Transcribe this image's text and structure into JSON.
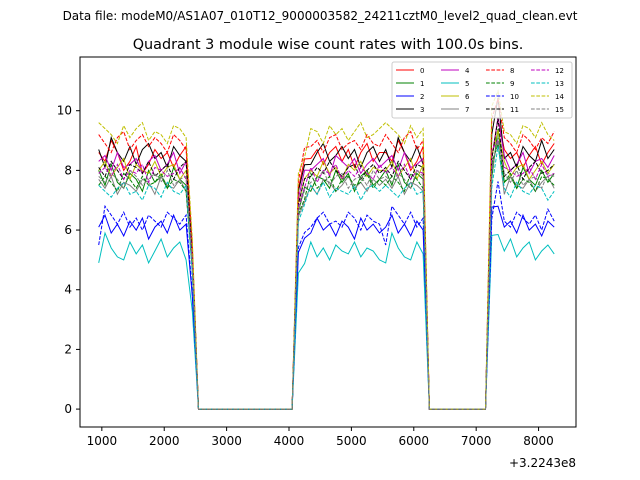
{
  "figure": {
    "suptitle": "Data file: modeM0/AS1A07_010T12_9000003582_24211cztM0_level2_quad_clean.evt",
    "title": "Quadrant 3 module wise count rates with 100.0s bins.",
    "x_offset_label": "+3.2243e8"
  },
  "chart_data": {
    "type": "line",
    "title": "Quadrant 3 module wise count rates with 100.0s bins.",
    "xlabel": "",
    "ylabel": "",
    "x_offset": "+3.2243e8",
    "xlim": [
      650,
      8600
    ],
    "ylim": [
      -0.6,
      11.8
    ],
    "xticks": [
      1000,
      2000,
      3000,
      4000,
      5000,
      6000,
      7000,
      8000
    ],
    "yticks": [
      0,
      2,
      4,
      6,
      8,
      10
    ],
    "grid": false,
    "legend": {
      "placement": "top-right",
      "columns": 4
    },
    "x": [
      950,
      1050,
      1150,
      1250,
      1350,
      1450,
      1550,
      1650,
      1750,
      1850,
      1950,
      2050,
      2150,
      2250,
      2350,
      2450,
      2550,
      2650,
      2750,
      2850,
      2950,
      3050,
      3150,
      3250,
      3350,
      3450,
      3550,
      3650,
      3750,
      3850,
      3950,
      4050,
      4150,
      4250,
      4350,
      4450,
      4550,
      4650,
      4750,
      4850,
      4950,
      5050,
      5150,
      5250,
      5350,
      5450,
      5550,
      5650,
      5750,
      5850,
      5950,
      6050,
      6150,
      6250,
      6350,
      6450,
      6550,
      6650,
      6750,
      6850,
      6950,
      7050,
      7150,
      7250,
      7350,
      7450,
      7550,
      7650,
      7750,
      7850,
      7950,
      8050,
      8150,
      8250
    ],
    "series": [
      {
        "name": "0",
        "color": "#ff0000",
        "dash": false,
        "level": 8.6,
        "burst": [
          0.0,
          -0.3,
          0.4,
          0.0,
          -0.6,
          -0.3,
          0.2,
          -0.7,
          -0.4,
          0.1,
          -0.2,
          0.0,
          -0.5,
          -0.1,
          0.2,
          -0.4,
          0.0,
          0.3,
          -0.2,
          0.1,
          -0.4,
          0.0,
          0.2,
          -0.3,
          0.1,
          -0.5,
          0.0,
          0.3,
          -0.3,
          0.0
        ]
      },
      {
        "name": "1",
        "color": "#008000",
        "dash": false,
        "level": 7.7,
        "burst": [
          0.3,
          -0.2,
          0.5,
          -0.1,
          -0.3,
          0.2,
          0.0,
          -0.4,
          0.3,
          -0.1,
          0.1,
          -0.3,
          0.4,
          0.0,
          -0.2,
          0.3,
          -0.1,
          0.2,
          -0.4,
          0.1,
          0.0,
          -0.3,
          0.3,
          -0.1,
          0.2,
          -0.4,
          0.1,
          0.3,
          -0.2,
          0.0
        ]
      },
      {
        "name": "2",
        "color": "#0000ff",
        "dash": false,
        "level": 6.1,
        "burst": [
          0.0,
          0.4,
          -0.2,
          0.1,
          -0.3,
          0.2,
          -0.1,
          0.3,
          -0.4,
          0.0,
          0.2,
          -0.2,
          0.4,
          -0.1,
          0.1,
          -0.3,
          0.2,
          0.0,
          -0.2,
          0.3,
          -0.1,
          0.1,
          -0.3,
          0.2,
          0.0,
          -0.4,
          0.3,
          -0.1,
          0.1,
          -0.2
        ]
      },
      {
        "name": "3",
        "color": "#000000",
        "dash": false,
        "level": 8.5,
        "burst": [
          0.2,
          -0.4,
          0.6,
          0.1,
          -0.2,
          0.3,
          -0.3,
          0.2,
          0.4,
          -0.1,
          0.1,
          -0.4,
          0.3,
          0.0,
          -0.2,
          0.5,
          -0.1,
          0.2,
          -0.3,
          0.1,
          0.4,
          -0.2,
          0.0,
          0.3,
          -0.1,
          0.2,
          -0.4,
          0.1,
          0.3,
          -0.2
        ]
      },
      {
        "name": "4",
        "color": "#bf00bf",
        "dash": false,
        "level": 8.2,
        "burst": [
          0.1,
          0.3,
          -0.2,
          0.4,
          -0.1,
          0.0,
          0.2,
          -0.3,
          0.1,
          0.3,
          -0.2,
          0.0,
          0.4,
          -0.3,
          0.1,
          0.2,
          -0.1,
          0.3,
          -0.2,
          0.0,
          0.2,
          -0.4,
          0.3,
          0.1,
          -0.1,
          0.2,
          -0.3,
          0.0,
          0.2,
          -0.1
        ]
      },
      {
        "name": "5",
        "color": "#00bfbf",
        "dash": false,
        "level": 5.3,
        "burst": [
          -0.4,
          0.6,
          0.1,
          -0.2,
          -0.3,
          0.3,
          -0.1,
          0.2,
          -0.4,
          0.0,
          0.4,
          -0.2,
          0.1,
          0.3,
          -0.3,
          0.0,
          0.2,
          -0.1,
          0.3,
          -0.2,
          0.1,
          -0.3,
          0.2,
          0.0,
          -0.1,
          0.3,
          -0.2,
          0.1,
          0.0,
          -0.3
        ]
      },
      {
        "name": "6",
        "color": "#bfbf00",
        "dash": false,
        "level": 8.0,
        "burst": [
          0.0,
          0.3,
          -0.2,
          0.1,
          0.4,
          -0.3,
          0.2,
          0.0,
          -0.1,
          0.3,
          -0.2,
          0.1,
          0.2,
          -0.3,
          0.0,
          0.3,
          -0.1,
          0.2,
          0.0,
          -0.2,
          0.3,
          -0.1,
          0.1,
          -0.3,
          0.2,
          0.0,
          0.3,
          -0.2,
          0.1,
          0.0
        ]
      },
      {
        "name": "7",
        "color": "#808080",
        "dash": false,
        "level": 7.5,
        "burst": [
          0.2,
          -0.1,
          0.3,
          -0.3,
          0.1,
          0.0,
          -0.2,
          0.2,
          0.1,
          -0.3,
          0.3,
          0.0,
          -0.1,
          0.2,
          -0.2,
          0.1,
          0.3,
          -0.1,
          0.0,
          -0.3,
          0.2,
          0.1,
          -0.2,
          0.0,
          0.3,
          -0.1,
          0.1,
          -0.2,
          0.2,
          0.0
        ]
      },
      {
        "name": "8",
        "color": "#ff0000",
        "dash": true,
        "level": 8.9,
        "burst": [
          0.3,
          0.0,
          -0.3,
          0.2,
          0.4,
          -0.2,
          0.1,
          0.3,
          -0.1,
          0.2,
          0.0,
          -0.3,
          0.3,
          0.1,
          -0.2,
          0.2,
          0.0,
          0.4,
          -0.1,
          0.1,
          -0.3,
          0.2,
          0.3,
          -0.2,
          0.0,
          0.1,
          -0.2,
          0.3,
          0.0,
          -0.1
        ]
      },
      {
        "name": "9",
        "color": "#008000",
        "dash": true,
        "level": 7.6,
        "burst": [
          -0.1,
          0.2,
          0.0,
          -0.3,
          0.3,
          0.1,
          -0.2,
          0.2,
          -0.1,
          0.0,
          0.3,
          -0.2,
          0.1,
          0.0,
          -0.3,
          0.2,
          0.1,
          -0.1,
          0.3,
          -0.2,
          0.0,
          0.2,
          -0.3,
          0.1,
          0.2,
          -0.1,
          0.0,
          0.3,
          -0.2,
          0.1
        ]
      },
      {
        "name": "10",
        "color": "#0000ff",
        "dash": true,
        "level": 6.3,
        "burst": [
          -0.8,
          0.5,
          0.2,
          -0.1,
          0.3,
          -0.2,
          0.1,
          -0.3,
          0.2,
          0.0,
          -0.2,
          0.3,
          0.1,
          -0.1,
          0.2,
          -0.3,
          0.4,
          0.0,
          -0.2,
          0.1,
          0.3,
          -0.1,
          0.0,
          -0.2,
          0.3,
          0.1,
          -0.3,
          0.2,
          0.0,
          -0.1
        ]
      },
      {
        "name": "11",
        "color": "#000000",
        "dash": true,
        "level": 8.0,
        "burst": [
          0.1,
          -0.2,
          0.3,
          0.0,
          -0.3,
          0.2,
          0.1,
          -0.1,
          0.3,
          -0.2,
          0.0,
          0.2,
          -0.3,
          0.1,
          0.3,
          -0.1,
          0.0,
          0.2,
          -0.2,
          0.1,
          -0.1,
          0.3,
          0.0,
          -0.2,
          0.1,
          0.2,
          -0.3,
          0.0,
          0.2,
          -0.1
        ]
      },
      {
        "name": "12",
        "color": "#bf00bf",
        "dash": true,
        "level": 7.9,
        "burst": [
          0.0,
          0.2,
          -0.1,
          0.3,
          -0.2,
          0.1,
          0.0,
          0.3,
          -0.3,
          0.2,
          0.1,
          -0.1,
          0.0,
          0.2,
          -0.2,
          0.3,
          -0.1,
          0.0,
          0.2,
          -0.3,
          0.1,
          0.0,
          0.3,
          -0.2,
          0.1,
          -0.1,
          0.2,
          0.0,
          -0.2,
          0.3
        ]
      },
      {
        "name": "13",
        "color": "#00bfbf",
        "dash": true,
        "level": 7.3,
        "burst": [
          0.2,
          0.0,
          -0.2,
          0.1,
          0.3,
          -0.1,
          0.0,
          -0.3,
          0.2,
          0.1,
          -0.2,
          0.3,
          0.0,
          -0.1,
          0.2,
          0.1,
          -0.3,
          0.0,
          0.2,
          -0.1,
          0.3,
          -0.2,
          0.1,
          0.0,
          -0.1,
          0.2,
          -0.3,
          0.1,
          0.2,
          0.0
        ]
      },
      {
        "name": "14",
        "color": "#bfbf00",
        "dash": true,
        "level": 9.2,
        "burst": [
          0.4,
          0.2,
          0.0,
          -0.3,
          0.3,
          -0.1,
          0.2,
          0.4,
          -0.2,
          0.1,
          0.0,
          -0.3,
          0.3,
          0.2,
          -0.1,
          0.4,
          0.0,
          -0.2,
          0.2,
          0.1,
          -0.3,
          0.3,
          0.0,
          0.2,
          -0.2,
          0.1,
          0.4,
          -0.1,
          0.0,
          0.2
        ]
      },
      {
        "name": "15",
        "color": "#808080",
        "dash": true,
        "level": 7.7,
        "burst": [
          0.1,
          -0.1,
          0.2,
          0.0,
          -0.3,
          0.3,
          0.1,
          -0.2,
          0.0,
          0.2,
          -0.1,
          0.3,
          -0.2,
          0.0,
          0.1,
          -0.3,
          0.2,
          0.1,
          -0.1,
          0.0,
          0.3,
          -0.2,
          0.1,
          0.2,
          -0.3,
          0.0,
          0.1,
          -0.2,
          0.3,
          0.0
        ]
      }
    ]
  }
}
